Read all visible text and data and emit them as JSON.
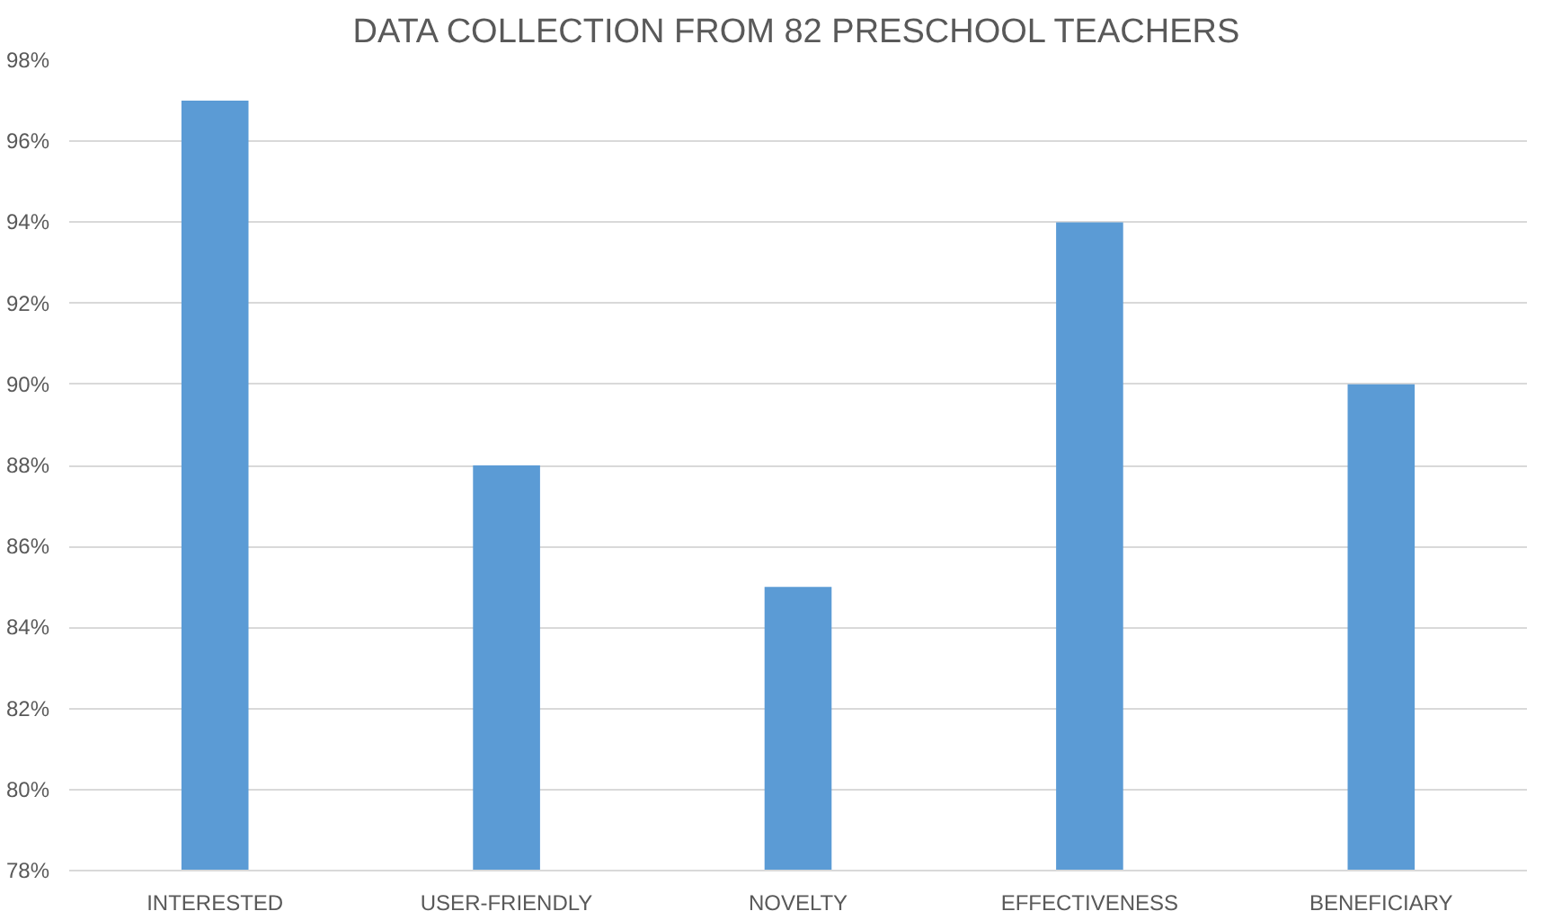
{
  "chart_data": {
    "type": "bar",
    "title": "DATA COLLECTION FROM 82 PRESCHOOL TEACHERS",
    "categories": [
      "INTERESTED",
      "USER-FRIENDLY",
      "NOVELTY",
      "EFFECTIVENESS",
      "BENEFICIARY"
    ],
    "values": [
      97,
      88,
      85,
      94,
      90
    ],
    "color": "#5b9bd5",
    "ylim": [
      78,
      98
    ],
    "yticks": [
      {
        "value": 78,
        "label": "78%"
      },
      {
        "value": 80,
        "label": "80%"
      },
      {
        "value": 82,
        "label": "82%"
      },
      {
        "value": 84,
        "label": "84%"
      },
      {
        "value": 86,
        "label": "86%"
      },
      {
        "value": 88,
        "label": "88%"
      },
      {
        "value": 90,
        "label": "90%"
      },
      {
        "value": 92,
        "label": "92%"
      },
      {
        "value": 94,
        "label": "94%"
      },
      {
        "value": 96,
        "label": "96%"
      },
      {
        "value": 98,
        "label": "98%"
      }
    ],
    "grid": "y"
  }
}
